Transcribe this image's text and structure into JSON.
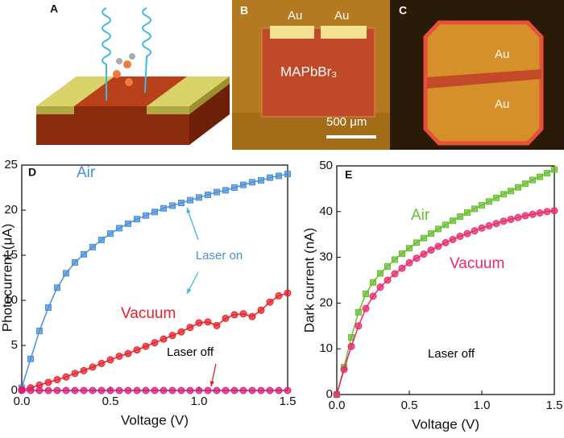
{
  "panels": [
    {
      "label": "A"
    },
    {
      "label": "B",
      "texts": [
        "Au",
        "Au",
        "MAPbBr₃",
        "500 μm"
      ]
    },
    {
      "label": "C",
      "texts": [
        "Au",
        "Au"
      ]
    }
  ],
  "chart_data": [
    {
      "type": "line",
      "label": "D",
      "x_label": "Voltage (V)",
      "y_label": "Photocurrent (μA)",
      "x": [
        0,
        0.05,
        0.1,
        0.15,
        0.2,
        0.25,
        0.3,
        0.35,
        0.4,
        0.45,
        0.5,
        0.55,
        0.6,
        0.65,
        0.7,
        0.75,
        0.8,
        0.85,
        0.9,
        0.95,
        1.0,
        1.05,
        1.1,
        1.15,
        1.2,
        1.25,
        1.3,
        1.35,
        1.4,
        1.45,
        1.5
      ],
      "series": [
        {
          "name": "Air",
          "color": "#4a8fd8",
          "marker": "square",
          "values": [
            0.3,
            3.5,
            6.6,
            9.2,
            11.4,
            13.0,
            14.2,
            15.1,
            15.9,
            16.7,
            17.4,
            18.0,
            18.5,
            19.0,
            19.4,
            19.8,
            20.2,
            20.5,
            20.8,
            21.1,
            21.4,
            21.7,
            22.0,
            22.2,
            22.5,
            22.8,
            23.1,
            23.3,
            23.6,
            23.8,
            24.0
          ]
        },
        {
          "name": "Vacuum",
          "color": "#e8202a",
          "marker": "circle",
          "values": [
            0.1,
            0.3,
            0.6,
            0.9,
            1.2,
            1.5,
            1.9,
            2.2,
            2.6,
            3.0,
            3.4,
            3.8,
            4.1,
            4.5,
            4.9,
            5.3,
            5.7,
            6.1,
            6.5,
            7.0,
            7.5,
            7.6,
            7.2,
            8.0,
            8.4,
            8.5,
            8.2,
            8.9,
            9.8,
            10.5,
            10.8
          ]
        },
        {
          "color": "#d81b7a",
          "marker": "circle",
          "values": [
            0,
            0,
            0,
            0,
            0,
            0,
            0,
            0,
            0,
            0,
            0,
            0,
            0,
            0,
            0,
            0,
            0,
            0,
            0,
            0,
            0,
            0,
            0,
            0,
            0,
            0,
            0,
            0,
            0,
            0,
            0
          ]
        }
      ],
      "annotations": [
        {
          "text": "Laser on",
          "color": "#4a8fd8"
        },
        {
          "text": "Laser off",
          "color": "#000000"
        }
      ],
      "xlim": [
        0,
        1.5
      ],
      "xticks": [
        {
          "value": 0,
          "label": "0.0"
        },
        0.5,
        {
          "value": 1,
          "label": "1.0"
        },
        1.5
      ],
      "ylim": [
        0,
        25
      ],
      "yticks": [
        0,
        5,
        10,
        15,
        20,
        25
      ]
    },
    {
      "type": "line",
      "label": "E",
      "x_label": "Voltage (V)",
      "y_label": "Dark current (nA)",
      "x": [
        0,
        0.05,
        0.1,
        0.15,
        0.2,
        0.25,
        0.3,
        0.35,
        0.4,
        0.45,
        0.5,
        0.55,
        0.6,
        0.65,
        0.7,
        0.75,
        0.8,
        0.85,
        0.9,
        0.95,
        1.0,
        1.05,
        1.1,
        1.15,
        1.2,
        1.25,
        1.3,
        1.35,
        1.4,
        1.45,
        1.5
      ],
      "series": [
        {
          "name": "Air",
          "color": "#66c02e",
          "marker": "square",
          "values": [
            0,
            6,
            12.5,
            18,
            22,
            24.5,
            26.5,
            28,
            29.5,
            30.8,
            32,
            33.2,
            34.2,
            35.2,
            36.2,
            37.1,
            38,
            38.9,
            39.8,
            40.6,
            41.4,
            42.2,
            43,
            43.8,
            44.5,
            45.3,
            46.1,
            46.9,
            47.6,
            48.4,
            49.2
          ]
        },
        {
          "name": "Vacuum",
          "color": "#e8286a",
          "marker": "circle",
          "values": [
            0,
            5.5,
            10.5,
            15,
            18.8,
            21.5,
            23.5,
            25,
            26.4,
            27.6,
            28.8,
            29.8,
            30.7,
            31.6,
            32.4,
            33.2,
            33.9,
            34.6,
            35.2,
            35.8,
            36.4,
            36.9,
            37.4,
            37.9,
            38.3,
            38.7,
            39.1,
            39.4,
            39.7,
            40.0,
            40.2
          ]
        }
      ],
      "annotations": [
        {
          "text": "Laser off",
          "color": "#000000"
        }
      ],
      "xlim": [
        0,
        1.5
      ],
      "xticks": [
        {
          "value": 0,
          "label": "0.0"
        },
        0.5,
        {
          "value": 1,
          "label": "1.0"
        },
        1.5
      ],
      "ylim": [
        0,
        50
      ],
      "yticks": [
        0,
        10,
        20,
        30,
        40,
        50
      ]
    }
  ]
}
